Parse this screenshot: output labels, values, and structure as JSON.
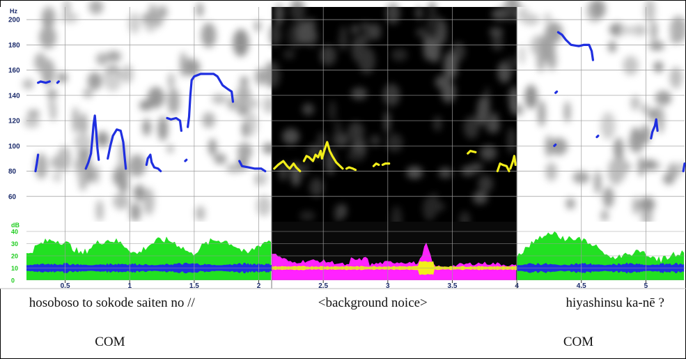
{
  "chart_data": {
    "type": "line",
    "y_unit_label": "Hz",
    "y_ticks": [
      60,
      80,
      100,
      120,
      140,
      160,
      180,
      200
    ],
    "ylim": [
      40,
      210
    ],
    "db_unit_label": "dB",
    "db_ticks": [
      0,
      10,
      20,
      30,
      40
    ],
    "dblim": [
      0,
      48
    ],
    "x_ticks": [
      0.5,
      1,
      1.5,
      2,
      2.5,
      3,
      3.5,
      4,
      4.5,
      5
    ],
    "xlim": [
      0.2,
      5.3
    ],
    "grid": true,
    "segments": [
      {
        "xstart": 0.2,
        "xend": 2.1,
        "background": "light",
        "pitch_color": "#1f2fe0",
        "energy_color": "#22e022",
        "wave_color": "#1f2fe0"
      },
      {
        "xstart": 2.1,
        "xend": 4.0,
        "background": "dark",
        "pitch_color": "#f2ee1a",
        "energy_color": "#ff22ff",
        "wave_color": "#f2ee1a"
      },
      {
        "xstart": 4.0,
        "xend": 5.3,
        "background": "light",
        "pitch_color": "#1f2fe0",
        "energy_color": "#22e022",
        "wave_color": "#1f2fe0"
      }
    ],
    "pitch": [
      {
        "color": "#1f2fe0",
        "points": [
          [
            0.27,
            80
          ],
          [
            0.28,
            86
          ],
          [
            0.29,
            93
          ]
        ]
      },
      {
        "color": "#1f2fe0",
        "points": [
          [
            0.29,
            150
          ],
          [
            0.31,
            151
          ],
          [
            0.35,
            150
          ],
          [
            0.38,
            151
          ]
        ]
      },
      {
        "color": "#1f2fe0",
        "points": [
          [
            0.44,
            150
          ],
          [
            0.45,
            151
          ]
        ]
      },
      {
        "color": "#1f2fe0",
        "points": [
          [
            0.66,
            82
          ],
          [
            0.68,
            87
          ],
          [
            0.7,
            94
          ],
          [
            0.71,
            105
          ],
          [
            0.72,
            117
          ],
          [
            0.73,
            124
          ],
          [
            0.74,
            112
          ],
          [
            0.75,
            98
          ],
          [
            0.76,
            89
          ]
        ]
      },
      {
        "color": "#1f2fe0",
        "points": [
          [
            0.83,
            90
          ],
          [
            0.85,
            100
          ],
          [
            0.87,
            108
          ],
          [
            0.9,
            113
          ],
          [
            0.93,
            112
          ],
          [
            0.95,
            103
          ],
          [
            0.96,
            92
          ],
          [
            0.97,
            82
          ]
        ]
      },
      {
        "color": "#1f2fe0",
        "points": [
          [
            1.13,
            85
          ],
          [
            1.14,
            90
          ],
          [
            1.16,
            93
          ],
          [
            1.17,
            87
          ],
          [
            1.19,
            83
          ],
          [
            1.22,
            82
          ],
          [
            1.24,
            80
          ]
        ]
      },
      {
        "color": "#1f2fe0",
        "points": [
          [
            1.29,
            122
          ],
          [
            1.32,
            121
          ],
          [
            1.36,
            122
          ],
          [
            1.39,
            120
          ],
          [
            1.4,
            112
          ]
        ]
      },
      {
        "color": "#1f2fe0",
        "points": [
          [
            1.43,
            88
          ],
          [
            1.44,
            89
          ]
        ]
      },
      {
        "color": "#1f2fe0",
        "points": [
          [
            1.45,
            115
          ],
          [
            1.46,
            123
          ],
          [
            1.47,
            140
          ],
          [
            1.48,
            152
          ],
          [
            1.5,
            155
          ],
          [
            1.55,
            157
          ],
          [
            1.65,
            157
          ],
          [
            1.68,
            155
          ],
          [
            1.72,
            148
          ],
          [
            1.76,
            145
          ],
          [
            1.79,
            143
          ],
          [
            1.8,
            135
          ]
        ]
      },
      {
        "color": "#1f2fe0",
        "points": [
          [
            1.85,
            88
          ],
          [
            1.87,
            84
          ],
          [
            1.92,
            83
          ],
          [
            1.97,
            82
          ],
          [
            2.02,
            82
          ],
          [
            2.05,
            80
          ]
        ]
      },
      {
        "color": "#f2ee1a",
        "points": [
          [
            2.12,
            82
          ],
          [
            2.15,
            85
          ],
          [
            2.19,
            88
          ],
          [
            2.22,
            84
          ],
          [
            2.24,
            82
          ],
          [
            2.27,
            86
          ],
          [
            2.29,
            83
          ],
          [
            2.32,
            80
          ]
        ]
      },
      {
        "color": "#f2ee1a",
        "points": [
          [
            2.35,
            88
          ],
          [
            2.37,
            92
          ],
          [
            2.39,
            91
          ],
          [
            2.42,
            88
          ],
          [
            2.44,
            93
          ],
          [
            2.46,
            91
          ],
          [
            2.48,
            96
          ],
          [
            2.49,
            90
          ],
          [
            2.51,
            97
          ],
          [
            2.53,
            103
          ],
          [
            2.55,
            96
          ],
          [
            2.57,
            92
          ],
          [
            2.6,
            87
          ],
          [
            2.63,
            84
          ],
          [
            2.65,
            82
          ]
        ]
      },
      {
        "color": "#f2ee1a",
        "points": [
          [
            2.68,
            82
          ],
          [
            2.7,
            83
          ],
          [
            2.73,
            82
          ],
          [
            2.75,
            81
          ]
        ]
      },
      {
        "color": "#f2ee1a",
        "points": [
          [
            2.89,
            84
          ],
          [
            2.91,
            86
          ],
          [
            2.93,
            85
          ]
        ]
      },
      {
        "color": "#f2ee1a",
        "points": [
          [
            2.96,
            85
          ],
          [
            2.98,
            86
          ],
          [
            3.01,
            86
          ]
        ]
      },
      {
        "color": "#f2ee1a",
        "points": [
          [
            3.62,
            94
          ],
          [
            3.64,
            96
          ],
          [
            3.68,
            95
          ]
        ]
      },
      {
        "color": "#f2ee1a",
        "points": [
          [
            3.85,
            80
          ],
          [
            3.87,
            86
          ],
          [
            3.89,
            85
          ],
          [
            3.92,
            84
          ],
          [
            3.94,
            80
          ]
        ]
      },
      {
        "color": "#f2ee1a",
        "points": [
          [
            3.95,
            82
          ],
          [
            3.97,
            88
          ],
          [
            3.98,
            92
          ],
          [
            3.99,
            85
          ]
        ]
      },
      {
        "color": "#1f2fe0",
        "points": [
          [
            4.32,
            190
          ],
          [
            4.35,
            188
          ],
          [
            4.38,
            184
          ],
          [
            4.42,
            180
          ],
          [
            4.48,
            179
          ],
          [
            4.52,
            180
          ],
          [
            4.56,
            180
          ],
          [
            4.58,
            175
          ],
          [
            4.59,
            168
          ]
        ]
      },
      {
        "color": "#1f2fe0",
        "points": [
          [
            4.3,
            142
          ],
          [
            4.31,
            143
          ]
        ]
      },
      {
        "color": "#1f2fe0",
        "points": [
          [
            4.29,
            100
          ],
          [
            4.3,
            101
          ]
        ]
      },
      {
        "color": "#1f2fe0",
        "points": [
          [
            4.62,
            107
          ],
          [
            4.63,
            108
          ]
        ]
      },
      {
        "color": "#1f2fe0",
        "points": [
          [
            5.04,
            106
          ],
          [
            5.05,
            111
          ],
          [
            5.07,
            116
          ],
          [
            5.08,
            121
          ],
          [
            5.09,
            112
          ]
        ]
      },
      {
        "color": "#1f2fe0",
        "points": [
          [
            5.29,
            80
          ],
          [
            5.3,
            86
          ]
        ]
      }
    ],
    "annotations": [
      {
        "text": "hosoboso to sokode saiten no //",
        "x": 0.22,
        "row": 1
      },
      {
        "text": "COM",
        "x": 0.73,
        "row": 2
      },
      {
        "text": "<background noice>",
        "x": 2.46,
        "row": 1
      },
      {
        "text": "hiyashinsu ka-nē ?",
        "x": 4.38,
        "row": 1
      },
      {
        "text": "COM",
        "x": 4.36,
        "row": 2
      }
    ]
  }
}
